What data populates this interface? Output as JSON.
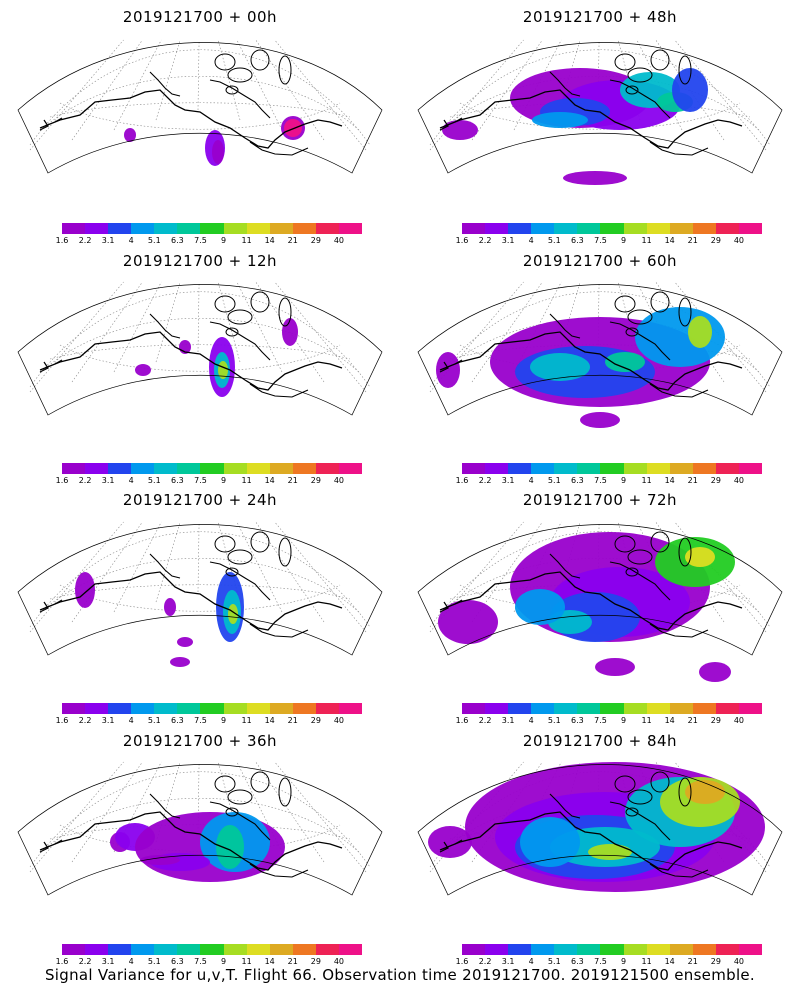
{
  "footer": "Signal Variance for u,v,T. Flight 66. Observation time 2019121700. 2019121500 ensemble.",
  "colorbar": {
    "colors": [
      "#9900cc",
      "#8a00ee",
      "#2244ee",
      "#0099ee",
      "#00bbcc",
      "#00c89a",
      "#22cc22",
      "#a6dd22",
      "#dddd22",
      "#ddaa22",
      "#ee7722",
      "#ee2255",
      "#ee1188"
    ],
    "labels": [
      "1.6",
      "2.2",
      "3.1",
      "4",
      "5.1",
      "6.3",
      "7.5",
      "9",
      "11",
      "14",
      "21",
      "29",
      "40"
    ]
  },
  "chart_data": [
    {
      "type": "heatmap",
      "title": "2019121700 + 00h",
      "lead_hours": 0,
      "max_level": "40",
      "region": "Alaska and Northern Canada",
      "levels": [
        "1.6",
        "2.2",
        "3.1",
        "4",
        "5.1",
        "6.3",
        "7.5",
        "9",
        "11",
        "14",
        "21",
        "29",
        "40"
      ]
    },
    {
      "type": "heatmap",
      "title": "2019121700 + 48h",
      "lead_hours": 48,
      "max_level": "9",
      "region": "Alaska and Northern Canada",
      "levels": [
        "1.6",
        "2.2",
        "3.1",
        "4",
        "5.1",
        "6.3",
        "7.5",
        "9",
        "11",
        "14",
        "21",
        "29",
        "40"
      ]
    },
    {
      "type": "heatmap",
      "title": "2019121700 + 12h",
      "lead_hours": 12,
      "max_level": "9",
      "region": "Alaska and Northern Canada",
      "levels": [
        "1.6",
        "2.2",
        "3.1",
        "4",
        "5.1",
        "6.3",
        "7.5",
        "9",
        "11",
        "14",
        "21",
        "29",
        "40"
      ]
    },
    {
      "type": "heatmap",
      "title": "2019121700 + 60h",
      "lead_hours": 60,
      "max_level": "9",
      "region": "Alaska and Northern Canada",
      "levels": [
        "1.6",
        "2.2",
        "3.1",
        "4",
        "5.1",
        "6.3",
        "7.5",
        "9",
        "11",
        "14",
        "21",
        "29",
        "40"
      ]
    },
    {
      "type": "heatmap",
      "title": "2019121700 + 24h",
      "lead_hours": 24,
      "max_level": "9",
      "region": "Alaska and Northern Canada",
      "levels": [
        "1.6",
        "2.2",
        "3.1",
        "4",
        "5.1",
        "6.3",
        "7.5",
        "9",
        "11",
        "14",
        "21",
        "29",
        "40"
      ]
    },
    {
      "type": "heatmap",
      "title": "2019121700 + 72h",
      "lead_hours": 72,
      "max_level": "9",
      "region": "Alaska and Northern Canada",
      "levels": [
        "1.6",
        "2.2",
        "3.1",
        "4",
        "5.1",
        "6.3",
        "7.5",
        "9",
        "11",
        "14",
        "21",
        "29",
        "40"
      ]
    },
    {
      "type": "heatmap",
      "title": "2019121700 + 36h",
      "lead_hours": 36,
      "max_level": "9",
      "region": "Alaska and Northern Canada",
      "levels": [
        "1.6",
        "2.2",
        "3.1",
        "4",
        "5.1",
        "6.3",
        "7.5",
        "9",
        "11",
        "14",
        "21",
        "29",
        "40"
      ]
    },
    {
      "type": "heatmap",
      "title": "2019121700 + 84h",
      "lead_hours": 84,
      "max_level": "11",
      "region": "Alaska and Northern Canada",
      "levels": [
        "1.6",
        "2.2",
        "3.1",
        "4",
        "5.1",
        "6.3",
        "7.5",
        "9",
        "11",
        "14",
        "21",
        "29",
        "40"
      ]
    }
  ]
}
